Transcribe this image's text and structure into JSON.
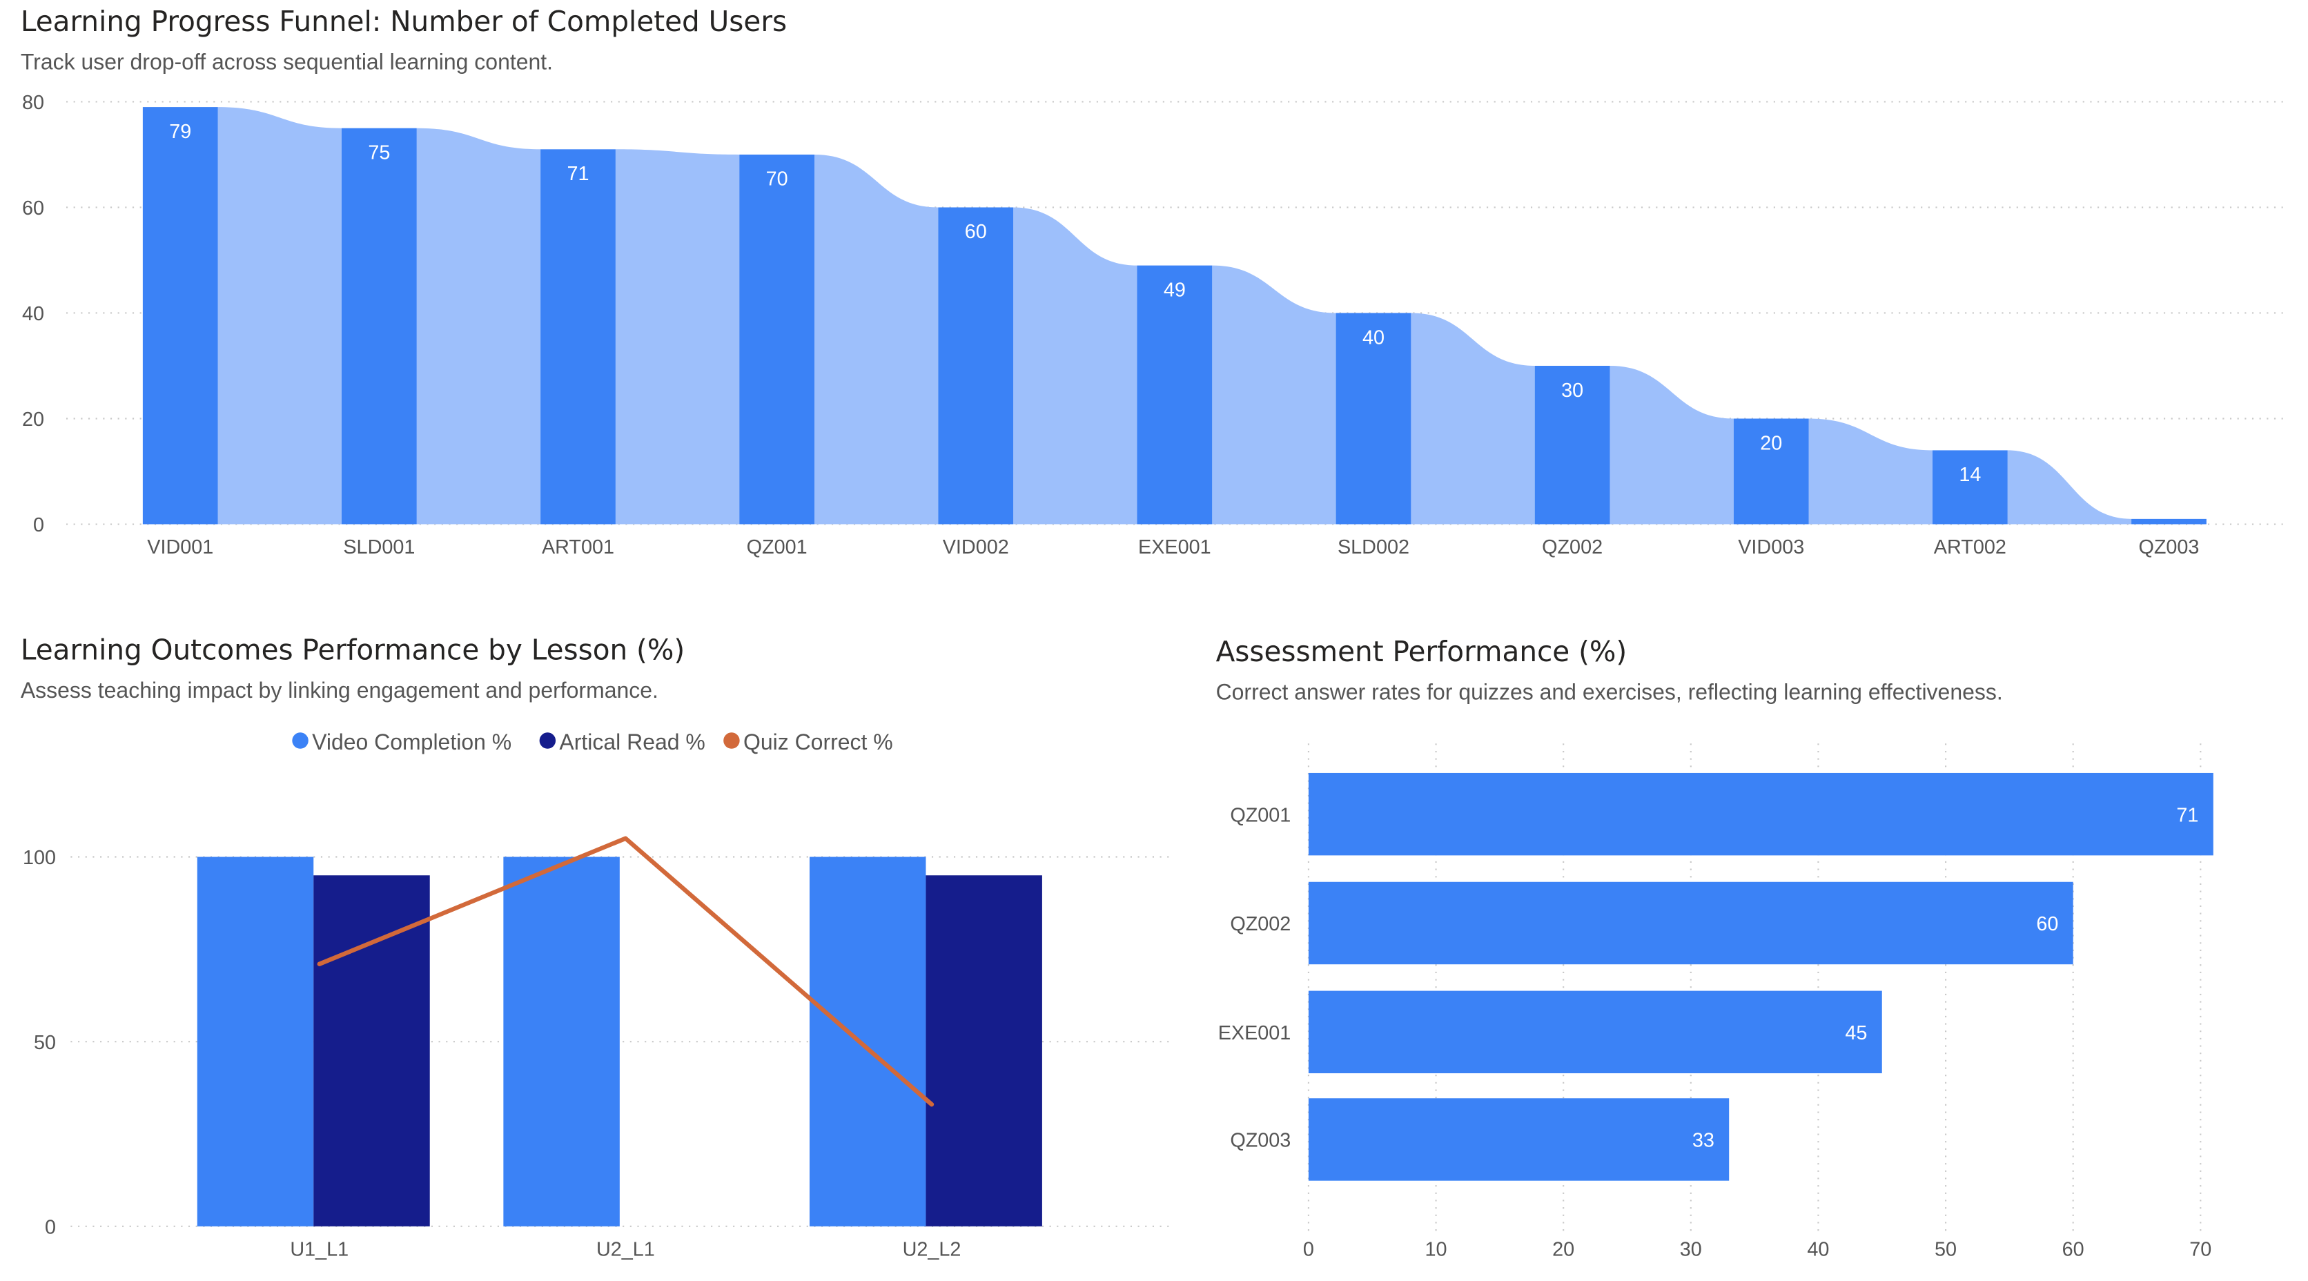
{
  "chart_data": [
    {
      "type": "bar",
      "title": "Learning Progress Funnel: Number of Completed Users",
      "subtitle": "Track user drop-off across sequential learning content.",
      "categories": [
        "VID001",
        "SLD001",
        "ART001",
        "QZ001",
        "VID002",
        "EXE001",
        "SLD002",
        "QZ002",
        "VID003",
        "ART002",
        "QZ003"
      ],
      "values": [
        79,
        75,
        71,
        70,
        60,
        49,
        40,
        30,
        20,
        14,
        1
      ],
      "data_labels": [
        "79",
        "75",
        "71",
        "70",
        "60",
        "49",
        "40",
        "30",
        "20",
        "14",
        ""
      ],
      "ylim": [
        0,
        80
      ],
      "yticks": [
        "0",
        "20",
        "40",
        "60",
        "80"
      ],
      "grid": true,
      "colors": {
        "bar": "#3b82f6",
        "ribbon": "#9dbffb"
      }
    },
    {
      "type": "bar",
      "title": "Learning Outcomes Performance by Lesson (%)",
      "subtitle": "Assess teaching impact by linking engagement and performance.",
      "categories": [
        "U1_L1",
        "U2_L1",
        "U2_L2"
      ],
      "series": [
        {
          "name": "Video Completion %",
          "type": "bar",
          "values": [
            100,
            100,
            100
          ],
          "color": "#3b82f6"
        },
        {
          "name": "Artical Read %",
          "type": "bar",
          "values": [
            95,
            null,
            95
          ],
          "color": "#151d8c"
        },
        {
          "name": "Quiz Correct %",
          "type": "line",
          "values": [
            71,
            105,
            33
          ],
          "color": "#d2693a"
        }
      ],
      "ylim": [
        0,
        110
      ],
      "yticks": [
        "0",
        "50",
        "100"
      ],
      "legend": "top-center",
      "grid": true
    },
    {
      "type": "bar",
      "orientation": "horizontal",
      "title": "Assessment Performance (%)",
      "subtitle": "Correct answer rates for quizzes and exercises, reflecting learning effectiveness.",
      "categories": [
        "QZ001",
        "QZ002",
        "EXE001",
        "QZ003"
      ],
      "values": [
        71,
        60,
        45,
        33
      ],
      "data_labels": [
        "71",
        "60",
        "45",
        "33"
      ],
      "xlim": [
        0,
        70
      ],
      "xticks": [
        "0",
        "10",
        "20",
        "30",
        "40",
        "50",
        "60",
        "70"
      ],
      "grid": true,
      "colors": {
        "bar": "#3b82f6"
      }
    }
  ]
}
